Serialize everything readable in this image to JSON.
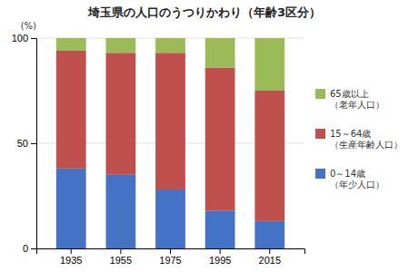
{
  "chart_data": {
    "type": "bar",
    "stacked": true,
    "title": "埼玉県の人口のうつりかわり（年齢3区分）",
    "ylabel": "(%)",
    "categories": [
      "1935",
      "1955",
      "1975",
      "1995",
      "2015"
    ],
    "series": [
      {
        "name": "0～14歳\n（年少人口）",
        "color": "#4472C4",
        "values": [
          38,
          35,
          28,
          18,
          13
        ]
      },
      {
        "name": "15～64歳\n（生産年齢人口）",
        "color": "#C0504D",
        "values": [
          56,
          58,
          65,
          68,
          62
        ]
      },
      {
        "name": "65歳以上\n（老年人口）",
        "color": "#9BBB59",
        "values": [
          6,
          7,
          7,
          14,
          25
        ]
      }
    ],
    "ylim": [
      0,
      100
    ],
    "yticks": [
      0,
      50,
      100
    ],
    "grid": true,
    "legend": "right"
  }
}
